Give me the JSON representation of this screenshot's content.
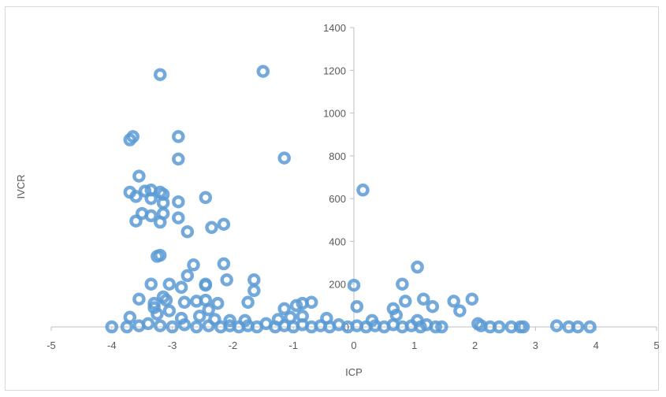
{
  "chart_data": {
    "type": "scatter",
    "xlabel": "ICP",
    "ylabel": "IVCR",
    "xlim": [
      -5,
      5
    ],
    "ylim": [
      0,
      1400
    ],
    "x_ticks": [
      -5,
      -4,
      -3,
      -2,
      -1,
      0,
      1,
      2,
      3,
      4,
      5
    ],
    "y_ticks": [
      200,
      400,
      600,
      800,
      1000,
      1200,
      1400
    ],
    "y_origin_label": "0",
    "grid": false,
    "legend": "none",
    "marker_color": "#5b9bd5",
    "series": [
      {
        "points": [
          [
            -3.2,
            1180
          ],
          [
            -1.5,
            1195
          ],
          [
            -3.65,
            890
          ],
          [
            -3.7,
            875
          ],
          [
            -2.9,
            890
          ],
          [
            -2.9,
            785
          ],
          [
            -1.15,
            790
          ],
          [
            -3.55,
            705
          ],
          [
            -3.7,
            630
          ],
          [
            -3.6,
            610
          ],
          [
            -3.45,
            635
          ],
          [
            -3.35,
            640
          ],
          [
            -3.35,
            600
          ],
          [
            -3.2,
            630
          ],
          [
            -3.15,
            620
          ],
          [
            -3.15,
            580
          ],
          [
            -2.9,
            585
          ],
          [
            -2.45,
            605
          ],
          [
            0.15,
            640
          ],
          [
            -3.5,
            530
          ],
          [
            -3.6,
            495
          ],
          [
            -3.35,
            520
          ],
          [
            -3.15,
            530
          ],
          [
            -3.2,
            490
          ],
          [
            -2.9,
            510
          ],
          [
            -2.75,
            445
          ],
          [
            -2.35,
            465
          ],
          [
            -2.15,
            480
          ],
          [
            -3.25,
            330
          ],
          [
            -3.2,
            335
          ],
          [
            -2.65,
            290
          ],
          [
            -2.15,
            295
          ],
          [
            1.05,
            280
          ],
          [
            -2.75,
            240
          ],
          [
            -3.35,
            200
          ],
          [
            -3.05,
            200
          ],
          [
            -2.85,
            185
          ],
          [
            -2.45,
            195
          ],
          [
            -2.45,
            200
          ],
          [
            -2.1,
            220
          ],
          [
            -1.65,
            220
          ],
          [
            -1.65,
            170
          ],
          [
            0.0,
            195
          ],
          [
            0.8,
            200
          ],
          [
            -3.55,
            130
          ],
          [
            -3.3,
            110
          ],
          [
            -3.15,
            140
          ],
          [
            -3.1,
            125
          ],
          [
            -2.8,
            115
          ],
          [
            -2.6,
            120
          ],
          [
            -2.45,
            125
          ],
          [
            -2.25,
            110
          ],
          [
            -1.75,
            115
          ],
          [
            -1.15,
            85
          ],
          [
            -0.95,
            100
          ],
          [
            -0.85,
            110
          ],
          [
            -0.7,
            115
          ],
          [
            0.65,
            85
          ],
          [
            0.85,
            120
          ],
          [
            1.15,
            130
          ],
          [
            1.3,
            95
          ],
          [
            1.65,
            120
          ],
          [
            1.75,
            75
          ],
          [
            1.95,
            130
          ],
          [
            0.05,
            95
          ],
          [
            -3.7,
            45
          ],
          [
            -3.25,
            60
          ],
          [
            -3.3,
            90
          ],
          [
            -3.05,
            75
          ],
          [
            -2.85,
            40
          ],
          [
            -2.55,
            50
          ],
          [
            -2.4,
            80
          ],
          [
            -2.3,
            35
          ],
          [
            -2.05,
            30
          ],
          [
            -1.8,
            30
          ],
          [
            -1.25,
            35
          ],
          [
            -1.05,
            45
          ],
          [
            -0.85,
            50
          ],
          [
            -0.45,
            40
          ],
          [
            0.3,
            30
          ],
          [
            0.7,
            55
          ],
          [
            1.05,
            30
          ],
          [
            -4.0,
            0
          ],
          [
            -3.75,
            0
          ],
          [
            -3.55,
            5
          ],
          [
            -3.4,
            15
          ],
          [
            -3.2,
            5
          ],
          [
            -3.0,
            0
          ],
          [
            -2.8,
            10
          ],
          [
            -2.6,
            0
          ],
          [
            -2.4,
            5
          ],
          [
            -2.2,
            0
          ],
          [
            -2.05,
            5
          ],
          [
            -1.9,
            0
          ],
          [
            -1.75,
            5
          ],
          [
            -1.6,
            0
          ],
          [
            -1.45,
            15
          ],
          [
            -1.3,
            0
          ],
          [
            -1.15,
            5
          ],
          [
            -1.0,
            0
          ],
          [
            -0.85,
            10
          ],
          [
            -0.7,
            0
          ],
          [
            -0.55,
            5
          ],
          [
            -0.4,
            0
          ],
          [
            -0.25,
            10
          ],
          [
            -0.1,
            0
          ],
          [
            0.05,
            5
          ],
          [
            0.2,
            0
          ],
          [
            0.35,
            5
          ],
          [
            0.5,
            0
          ],
          [
            0.65,
            10
          ],
          [
            0.8,
            0
          ],
          [
            0.95,
            5
          ],
          [
            1.1,
            0
          ],
          [
            1.2,
            10
          ],
          [
            1.35,
            0
          ],
          [
            1.45,
            0
          ],
          [
            2.05,
            15
          ],
          [
            2.1,
            5
          ],
          [
            2.25,
            0
          ],
          [
            2.4,
            0
          ],
          [
            2.6,
            0
          ],
          [
            2.75,
            0
          ],
          [
            2.8,
            0
          ],
          [
            3.35,
            5
          ],
          [
            3.55,
            0
          ],
          [
            3.7,
            0
          ],
          [
            3.9,
            0
          ]
        ]
      }
    ]
  }
}
